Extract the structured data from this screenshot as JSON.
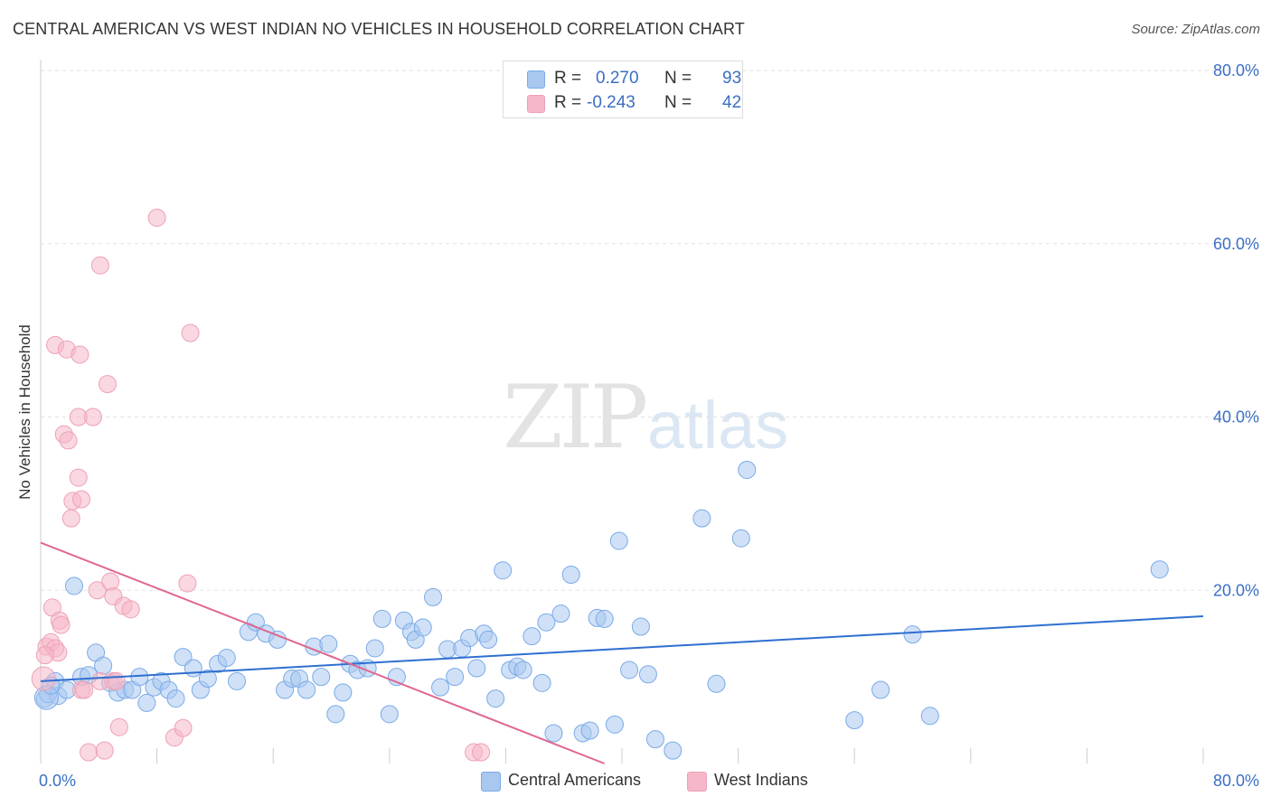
{
  "title": "CENTRAL AMERICAN VS WEST INDIAN NO VEHICLES IN HOUSEHOLD CORRELATION CHART",
  "source": "Source: ZipAtlas.com",
  "watermark": {
    "zip": "ZIP",
    "atlas": "atlas"
  },
  "legend_top": {
    "rows": [
      {
        "r_label": "R =",
        "r_value": "0.270",
        "n_label": "N =",
        "n_value": "93",
        "color": "#a9c8f0"
      },
      {
        "r_label": "R =",
        "r_value": "-0.243",
        "n_label": "N =",
        "n_value": "42",
        "color": "#f6b8c9"
      }
    ]
  },
  "legend_bottom": {
    "items": [
      {
        "label": "Central Americans",
        "color": "#a9c8f0"
      },
      {
        "label": "West Indians",
        "color": "#f6b8c9"
      }
    ]
  },
  "chart_data": {
    "type": "scatter",
    "xlabel": "",
    "ylabel": "No Vehicles in Household",
    "xlim": [
      0,
      80
    ],
    "ylim": [
      0,
      80
    ],
    "x_tick_labels": [
      "0.0%",
      "80.0%"
    ],
    "y_tick_labels": [
      "20.0%",
      "40.0%",
      "60.0%",
      "80.0%"
    ],
    "y_ticks": [
      20,
      40,
      60,
      80
    ],
    "grid": true,
    "series": [
      {
        "name": "Central Americans",
        "color": "#7aaae8",
        "fill": "#a9c8f0",
        "trend": {
          "x": [
            0,
            80
          ],
          "y": [
            9.5,
            17.0
          ],
          "color": "#2f6fd0"
        },
        "points": [
          [
            0.3,
            7.5
          ],
          [
            0.5,
            8.0
          ],
          [
            1.0,
            9.5
          ],
          [
            1.2,
            7.8
          ],
          [
            1.8,
            8.5
          ],
          [
            2.3,
            20.5
          ],
          [
            2.8,
            10.0
          ],
          [
            3.3,
            10.2
          ],
          [
            3.8,
            12.8
          ],
          [
            4.3,
            11.3
          ],
          [
            4.8,
            9.3
          ],
          [
            5.3,
            8.2
          ],
          [
            5.8,
            8.5
          ],
          [
            6.3,
            8.5
          ],
          [
            6.8,
            10.0
          ],
          [
            7.3,
            7.0
          ],
          [
            7.8,
            8.8
          ],
          [
            8.3,
            9.5
          ],
          [
            8.8,
            8.5
          ],
          [
            9.3,
            7.5
          ],
          [
            9.8,
            12.3
          ],
          [
            10.5,
            11.0
          ],
          [
            11.0,
            8.5
          ],
          [
            11.5,
            9.8
          ],
          [
            12.2,
            11.5
          ],
          [
            12.8,
            12.2
          ],
          [
            13.5,
            9.5
          ],
          [
            14.3,
            15.2
          ],
          [
            14.8,
            16.3
          ],
          [
            15.5,
            15.0
          ],
          [
            16.3,
            14.3
          ],
          [
            16.8,
            8.5
          ],
          [
            17.3,
            9.8
          ],
          [
            17.8,
            9.8
          ],
          [
            18.3,
            8.5
          ],
          [
            18.8,
            13.5
          ],
          [
            19.3,
            10.0
          ],
          [
            19.8,
            13.8
          ],
          [
            20.3,
            5.7
          ],
          [
            20.8,
            8.2
          ],
          [
            21.3,
            11.5
          ],
          [
            21.8,
            10.8
          ],
          [
            22.5,
            11.0
          ],
          [
            23.0,
            13.3
          ],
          [
            23.5,
            16.7
          ],
          [
            24.0,
            5.7
          ],
          [
            24.5,
            10.0
          ],
          [
            25.0,
            16.5
          ],
          [
            25.5,
            15.2
          ],
          [
            25.8,
            14.3
          ],
          [
            26.3,
            15.7
          ],
          [
            27.0,
            19.2
          ],
          [
            27.5,
            8.8
          ],
          [
            28.0,
            13.2
          ],
          [
            28.5,
            10.0
          ],
          [
            29.0,
            13.3
          ],
          [
            29.5,
            14.5
          ],
          [
            30.0,
            11.0
          ],
          [
            30.5,
            15.0
          ],
          [
            30.8,
            14.3
          ],
          [
            31.3,
            7.5
          ],
          [
            31.8,
            22.3
          ],
          [
            32.3,
            10.8
          ],
          [
            32.8,
            11.2
          ],
          [
            33.2,
            10.8
          ],
          [
            33.8,
            14.7
          ],
          [
            34.5,
            9.3
          ],
          [
            34.8,
            16.3
          ],
          [
            35.3,
            3.5
          ],
          [
            35.8,
            17.3
          ],
          [
            36.5,
            21.8
          ],
          [
            37.3,
            3.5
          ],
          [
            37.8,
            3.8
          ],
          [
            38.3,
            16.8
          ],
          [
            38.8,
            16.7
          ],
          [
            39.5,
            4.5
          ],
          [
            39.8,
            25.7
          ],
          [
            40.5,
            10.8
          ],
          [
            41.3,
            15.8
          ],
          [
            41.8,
            10.3
          ],
          [
            42.3,
            2.8
          ],
          [
            43.5,
            1.5
          ],
          [
            45.5,
            28.3
          ],
          [
            46.5,
            9.2
          ],
          [
            48.2,
            26.0
          ],
          [
            48.6,
            33.9
          ],
          [
            56.0,
            5.0
          ],
          [
            57.8,
            8.5
          ],
          [
            60.0,
            14.9
          ],
          [
            61.2,
            5.5
          ],
          [
            77.0,
            22.4
          ],
          [
            0.4,
            7.6
          ],
          [
            0.7,
            9.0
          ]
        ]
      },
      {
        "name": "West Indians",
        "color": "#eea0b5",
        "fill": "#f6b8c9",
        "trend": {
          "x": [
            0,
            38.8
          ],
          "y": [
            25.5,
            0
          ],
          "color": "#e0678f"
        },
        "points": [
          [
            0.4,
            13.5
          ],
          [
            0.7,
            14.0
          ],
          [
            0.8,
            18.0
          ],
          [
            1.0,
            13.3
          ],
          [
            1.2,
            12.8
          ],
          [
            1.3,
            16.5
          ],
          [
            1.4,
            16.0
          ],
          [
            1.0,
            48.3
          ],
          [
            1.8,
            47.8
          ],
          [
            1.6,
            38.0
          ],
          [
            1.9,
            37.3
          ],
          [
            2.2,
            30.3
          ],
          [
            2.1,
            28.3
          ],
          [
            2.6,
            33.0
          ],
          [
            2.8,
            30.5
          ],
          [
            2.6,
            40.0
          ],
          [
            2.8,
            8.5
          ],
          [
            2.7,
            47.2
          ],
          [
            3.0,
            8.5
          ],
          [
            3.3,
            1.3
          ],
          [
            3.6,
            40.0
          ],
          [
            3.9,
            20.0
          ],
          [
            4.1,
            9.5
          ],
          [
            4.1,
            57.5
          ],
          [
            4.4,
            1.5
          ],
          [
            4.6,
            43.8
          ],
          [
            4.8,
            21.0
          ],
          [
            5.0,
            19.3
          ],
          [
            5.0,
            9.5
          ],
          [
            5.2,
            9.5
          ],
          [
            5.4,
            4.2
          ],
          [
            5.7,
            18.2
          ],
          [
            6.2,
            17.8
          ],
          [
            8.0,
            63.0
          ],
          [
            9.2,
            3.0
          ],
          [
            9.8,
            4.1
          ],
          [
            10.1,
            20.8
          ],
          [
            10.3,
            49.7
          ],
          [
            29.8,
            1.3
          ],
          [
            30.3,
            1.3
          ],
          [
            0.2,
            9.8
          ],
          [
            0.3,
            12.5
          ]
        ]
      }
    ]
  }
}
